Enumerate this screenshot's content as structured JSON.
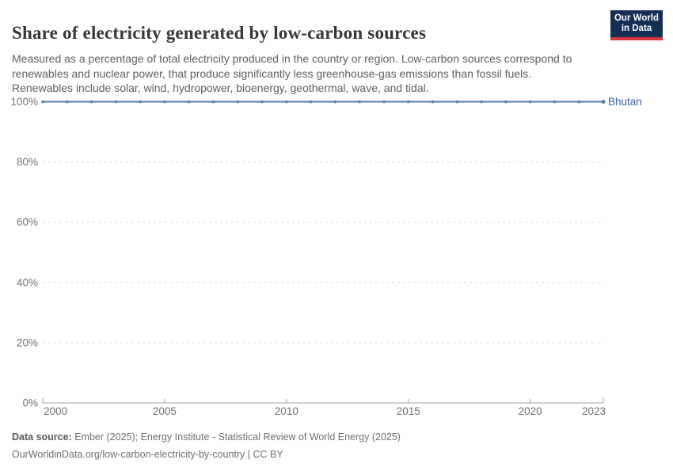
{
  "header": {
    "title": "Share of electricity generated by low-carbon sources",
    "subtitle": "Measured as a percentage of total electricity produced in the country or region. Low-carbon sources correspond to renewables and nuclear power, that produce significantly less greenhouse-gas emissions than fossil fuels. Renewables include solar, wind, hydropower, bioenergy, geothermal, wave, and tidal.",
    "logo": {
      "line1": "Our World",
      "line2": "in Data"
    }
  },
  "chart_data": {
    "type": "line",
    "title": "Share of electricity generated by low-carbon sources",
    "xlabel": "",
    "ylabel": "",
    "unit": "%",
    "xlim": [
      2000,
      2023
    ],
    "ylim": [
      0,
      100
    ],
    "grid": "horizontal-dashed",
    "legend_position": "end-of-line-label",
    "xticks": [
      2000,
      2005,
      2010,
      2015,
      2020,
      2023
    ],
    "yticks": [
      {
        "value": 0,
        "label": "0%"
      },
      {
        "value": 20,
        "label": "20%"
      },
      {
        "value": 40,
        "label": "40%"
      },
      {
        "value": 60,
        "label": "60%"
      },
      {
        "value": 80,
        "label": "80%"
      },
      {
        "value": 100,
        "label": "100%"
      }
    ],
    "x": [
      2000,
      2001,
      2002,
      2003,
      2004,
      2005,
      2006,
      2007,
      2008,
      2009,
      2010,
      2011,
      2012,
      2013,
      2014,
      2015,
      2016,
      2017,
      2018,
      2019,
      2020,
      2021,
      2022,
      2023
    ],
    "series": [
      {
        "name": "Bhutan",
        "color": "#577ab1",
        "label_color": "#3d64a8",
        "values": [
          100,
          100,
          100,
          100,
          100,
          100,
          100,
          100,
          100,
          100,
          100,
          100,
          100,
          100,
          100,
          100,
          100,
          100,
          100,
          100,
          100,
          100,
          100,
          100
        ]
      }
    ]
  },
  "colors": {
    "grid": "#dcdcdc",
    "axis": "#a3a3a3",
    "tick_text": "#737373",
    "logo_bg": "#142f54",
    "logo_red": "#d7343f"
  },
  "footer": {
    "datasource_label": "Data source:",
    "datasource_text": " Ember (2025); Energy Institute - Statistical Review of World Energy (2025)",
    "url_line": "OurWorldinData.org/low-carbon-electricity-by-country | CC BY"
  }
}
